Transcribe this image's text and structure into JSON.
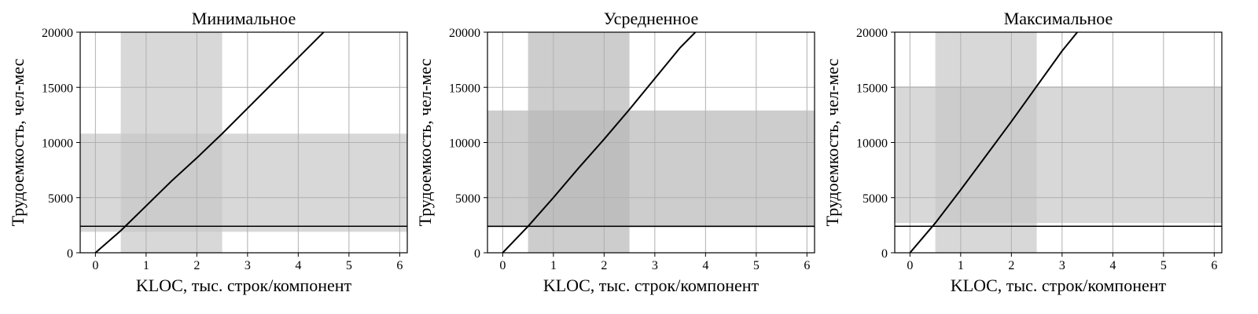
{
  "chart_data": [
    {
      "type": "line",
      "title": "Минимальное",
      "xlabel": "KLOC, тыс. строк/компонент",
      "ylabel": "Трудоемкость, чел-мес",
      "xlim": [
        -0.3,
        6.15
      ],
      "ylim": [
        0,
        20000
      ],
      "xticks": [
        0,
        1,
        2,
        3,
        4,
        5,
        6
      ],
      "yticks": [
        0,
        5000,
        10000,
        15000,
        20000
      ],
      "grid": true,
      "curve": {
        "x": [
          0,
          0.5,
          1,
          1.5,
          2,
          2.5,
          3,
          3.5,
          4,
          4.5
        ],
        "y": [
          0,
          2000,
          4250,
          6500,
          8600,
          10800,
          13100,
          15400,
          17700,
          20000
        ]
      },
      "hline": 2400,
      "x_band": [
        0.5,
        2.5
      ],
      "y_band": [
        1900,
        10800
      ],
      "colors": {
        "line": "#000000",
        "band": "#c8c8c8",
        "grid": "#b0b0b0"
      }
    },
    {
      "type": "line",
      "title": "Усредненное",
      "xlabel": "KLOC, тыс. строк/компонент",
      "ylabel": "Трудоемкость, чел-мес",
      "xlim": [
        -0.3,
        6.15
      ],
      "ylim": [
        0,
        20000
      ],
      "xticks": [
        0,
        1,
        2,
        3,
        4,
        5,
        6
      ],
      "yticks": [
        0,
        5000,
        10000,
        15000,
        20000
      ],
      "grid": true,
      "curve": {
        "x": [
          0,
          0.5,
          1,
          1.5,
          2,
          2.5,
          3,
          3.5,
          3.8
        ],
        "y": [
          0,
          2400,
          5000,
          7700,
          10300,
          13000,
          15800,
          18600,
          20000
        ]
      },
      "hline": 2400,
      "x_band": [
        0.5,
        2.5
      ],
      "y_band": [
        2300,
        12900
      ],
      "colors": {
        "line": "#000000",
        "band": "#b8b8b8",
        "grid": "#b0b0b0"
      }
    },
    {
      "type": "line",
      "title": "Максимальное",
      "xlabel": "KLOC, тыс. строк/компонент",
      "ylabel": "Трудоемкость, чел-мес",
      "xlim": [
        -0.3,
        6.15
      ],
      "ylim": [
        0,
        20000
      ],
      "xticks": [
        0,
        1,
        2,
        3,
        4,
        5,
        6
      ],
      "yticks": [
        0,
        5000,
        10000,
        15000,
        20000
      ],
      "grid": true,
      "curve": {
        "x": [
          0,
          0.5,
          1,
          1.5,
          2,
          2.5,
          3,
          3.3
        ],
        "y": [
          0,
          2700,
          5700,
          8800,
          11900,
          15100,
          18300,
          20000
        ]
      },
      "hline": 2400,
      "x_band": [
        0.5,
        2.5
      ],
      "y_band": [
        2700,
        15100
      ],
      "colors": {
        "line": "#000000",
        "band": "#c8c8c8",
        "grid": "#b0b0b0"
      }
    }
  ]
}
